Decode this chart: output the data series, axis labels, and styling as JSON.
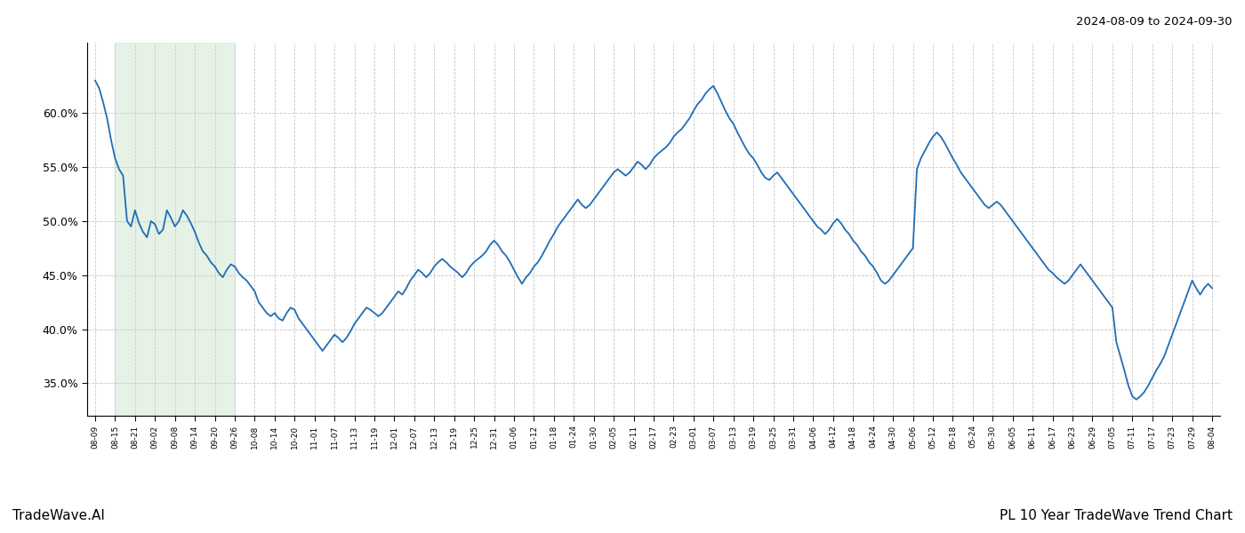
{
  "title_top_right": "2024-08-09 to 2024-09-30",
  "title_bottom_right": "PL 10 Year TradeWave Trend Chart",
  "title_bottom_left": "TradeWave.AI",
  "line_color": "#1f6db5",
  "line_width": 1.3,
  "shade_color": "#d6ead6",
  "shade_alpha": 0.6,
  "bg_color": "#ffffff",
  "grid_color": "#c8c8c8",
  "ymin": 0.32,
  "ymax": 0.665,
  "yticks": [
    0.35,
    0.4,
    0.45,
    0.5,
    0.55,
    0.6
  ],
  "x_labels": [
    "08-09",
    "08-15",
    "08-21",
    "09-02",
    "09-08",
    "09-14",
    "09-20",
    "09-26",
    "10-08",
    "10-14",
    "10-20",
    "11-01",
    "11-07",
    "11-13",
    "11-19",
    "12-01",
    "12-07",
    "12-13",
    "12-19",
    "12-25",
    "12-31",
    "01-06",
    "01-12",
    "01-18",
    "01-24",
    "01-30",
    "02-05",
    "02-11",
    "02-17",
    "02-23",
    "03-01",
    "03-07",
    "03-13",
    "03-19",
    "03-25",
    "03-31",
    "04-06",
    "04-12",
    "04-18",
    "04-24",
    "04-30",
    "05-06",
    "05-12",
    "05-18",
    "05-24",
    "05-30",
    "06-05",
    "06-11",
    "06-17",
    "06-23",
    "06-29",
    "07-05",
    "07-11",
    "07-17",
    "07-23",
    "07-29",
    "08-04"
  ],
  "shade_label_start": "08-15",
  "shade_label_end": "09-26",
  "values": [
    0.63,
    0.623,
    0.61,
    0.595,
    0.575,
    0.558,
    0.548,
    0.542,
    0.5,
    0.495,
    0.51,
    0.498,
    0.49,
    0.485,
    0.5,
    0.497,
    0.488,
    0.492,
    0.51,
    0.503,
    0.495,
    0.5,
    0.51,
    0.505,
    0.498,
    0.49,
    0.48,
    0.472,
    0.468,
    0.462,
    0.458,
    0.452,
    0.448,
    0.455,
    0.46,
    0.458,
    0.452,
    0.448,
    0.445,
    0.44,
    0.435,
    0.425,
    0.42,
    0.415,
    0.412,
    0.415,
    0.41,
    0.408,
    0.415,
    0.42,
    0.418,
    0.41,
    0.405,
    0.4,
    0.395,
    0.39,
    0.385,
    0.38,
    0.385,
    0.39,
    0.395,
    0.392,
    0.388,
    0.392,
    0.398,
    0.405,
    0.41,
    0.415,
    0.42,
    0.418,
    0.415,
    0.412,
    0.415,
    0.42,
    0.425,
    0.43,
    0.435,
    0.432,
    0.438,
    0.445,
    0.45,
    0.455,
    0.452,
    0.448,
    0.452,
    0.458,
    0.462,
    0.465,
    0.462,
    0.458,
    0.455,
    0.452,
    0.448,
    0.452,
    0.458,
    0.462,
    0.465,
    0.468,
    0.472,
    0.478,
    0.482,
    0.478,
    0.472,
    0.468,
    0.462,
    0.455,
    0.448,
    0.442,
    0.448,
    0.452,
    0.458,
    0.462,
    0.468,
    0.475,
    0.482,
    0.488,
    0.495,
    0.5,
    0.505,
    0.51,
    0.515,
    0.52,
    0.515,
    0.512,
    0.515,
    0.52,
    0.525,
    0.53,
    0.535,
    0.54,
    0.545,
    0.548,
    0.545,
    0.542,
    0.545,
    0.55,
    0.555,
    0.552,
    0.548,
    0.552,
    0.558,
    0.562,
    0.565,
    0.568,
    0.572,
    0.578,
    0.582,
    0.585,
    0.59,
    0.595,
    0.602,
    0.608,
    0.612,
    0.618,
    0.622,
    0.625,
    0.618,
    0.61,
    0.602,
    0.595,
    0.59,
    0.582,
    0.575,
    0.568,
    0.562,
    0.558,
    0.552,
    0.545,
    0.54,
    0.538,
    0.542,
    0.545,
    0.54,
    0.535,
    0.53,
    0.525,
    0.52,
    0.515,
    0.51,
    0.505,
    0.5,
    0.495,
    0.492,
    0.488,
    0.492,
    0.498,
    0.502,
    0.498,
    0.492,
    0.488,
    0.482,
    0.478,
    0.472,
    0.468,
    0.462,
    0.458,
    0.452,
    0.445,
    0.442,
    0.445,
    0.45,
    0.455,
    0.46,
    0.465,
    0.47,
    0.475,
    0.548,
    0.558,
    0.565,
    0.572,
    0.578,
    0.582,
    0.578,
    0.572,
    0.565,
    0.558,
    0.552,
    0.545,
    0.54,
    0.535,
    0.53,
    0.525,
    0.52,
    0.515,
    0.512,
    0.515,
    0.518,
    0.515,
    0.51,
    0.505,
    0.5,
    0.495,
    0.49,
    0.485,
    0.48,
    0.475,
    0.47,
    0.465,
    0.46,
    0.455,
    0.452,
    0.448,
    0.445,
    0.442,
    0.445,
    0.45,
    0.455,
    0.46,
    0.455,
    0.45,
    0.445,
    0.44,
    0.435,
    0.43,
    0.425,
    0.42,
    0.388,
    0.375,
    0.362,
    0.348,
    0.338,
    0.335,
    0.338,
    0.342,
    0.348,
    0.355,
    0.362,
    0.368,
    0.375,
    0.385,
    0.395,
    0.405,
    0.415,
    0.425,
    0.435,
    0.445,
    0.438,
    0.432,
    0.438,
    0.442,
    0.438
  ]
}
